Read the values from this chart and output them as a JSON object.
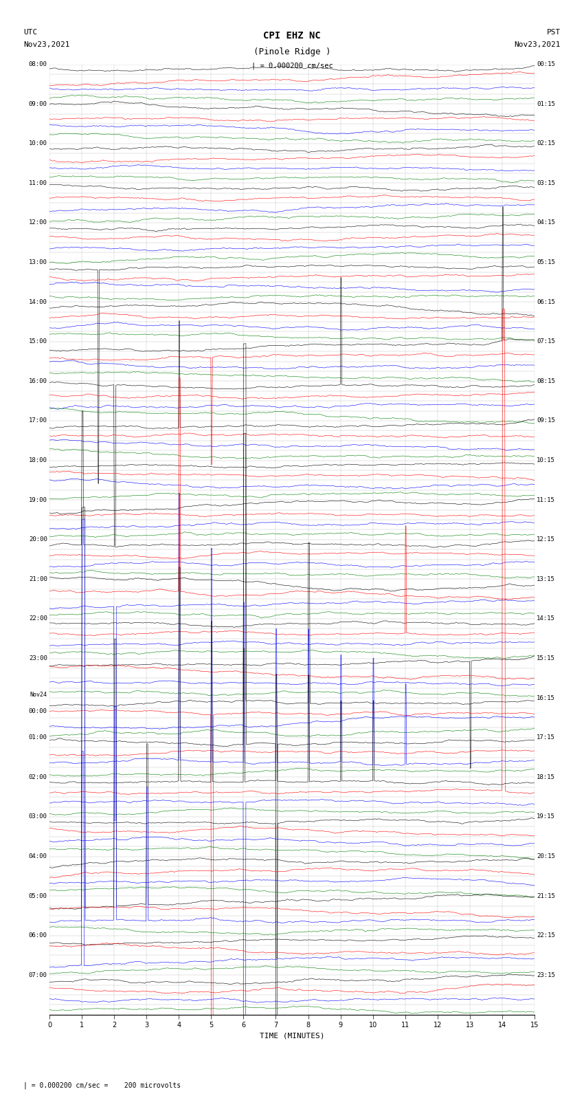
{
  "title_line1": "CPI EHZ NC",
  "title_line2": "(Pinole Ridge )",
  "scale_label": "| = 0.000200 cm/sec",
  "left_label_line1": "UTC",
  "left_label_line2": "Nov23,2021",
  "right_label_line1": "PST",
  "right_label_line2": "Nov23,2021",
  "bottom_label": "TIME (MINUTES)",
  "footer_text": "| = 0.000200 cm/sec =    200 microvolts",
  "left_times": [
    "08:00",
    "",
    "",
    "",
    "09:00",
    "",
    "",
    "",
    "10:00",
    "",
    "",
    "",
    "11:00",
    "",
    "",
    "",
    "12:00",
    "",
    "",
    "",
    "13:00",
    "",
    "",
    "",
    "14:00",
    "",
    "",
    "",
    "15:00",
    "",
    "",
    "",
    "16:00",
    "",
    "",
    "",
    "17:00",
    "",
    "",
    "",
    "18:00",
    "",
    "",
    "",
    "19:00",
    "",
    "",
    "",
    "20:00",
    "",
    "",
    "",
    "21:00",
    "",
    "",
    "",
    "22:00",
    "",
    "",
    "",
    "23:00",
    "",
    "",
    "",
    "Nov24",
    "00:00",
    "",
    "",
    "01:00",
    "",
    "",
    "",
    "02:00",
    "",
    "",
    "",
    "03:00",
    "",
    "",
    "",
    "04:00",
    "",
    "",
    "",
    "05:00",
    "",
    "",
    "",
    "06:00",
    "",
    "",
    "",
    "07:00",
    "",
    "",
    ""
  ],
  "right_times": [
    "00:15",
    "",
    "",
    "",
    "01:15",
    "",
    "",
    "",
    "02:15",
    "",
    "",
    "",
    "03:15",
    "",
    "",
    "",
    "04:15",
    "",
    "",
    "",
    "05:15",
    "",
    "",
    "",
    "06:15",
    "",
    "",
    "",
    "07:15",
    "",
    "",
    "",
    "08:15",
    "",
    "",
    "",
    "09:15",
    "",
    "",
    "",
    "10:15",
    "",
    "",
    "",
    "11:15",
    "",
    "",
    "",
    "12:15",
    "",
    "",
    "",
    "13:15",
    "",
    "",
    "",
    "14:15",
    "",
    "",
    "",
    "15:15",
    "",
    "",
    "",
    "16:15",
    "",
    "",
    "",
    "17:15",
    "",
    "",
    "",
    "18:15",
    "",
    "",
    "",
    "19:15",
    "",
    "",
    "",
    "20:15",
    "",
    "",
    "",
    "21:15",
    "",
    "",
    "",
    "22:15",
    "",
    "",
    "",
    "23:15",
    "",
    "",
    ""
  ],
  "n_rows": 96,
  "colors": [
    "black",
    "red",
    "blue",
    "green"
  ],
  "x_min": 0,
  "x_max": 15,
  "x_ticks": [
    0,
    1,
    2,
    3,
    4,
    5,
    6,
    7,
    8,
    9,
    10,
    11,
    12,
    13,
    14,
    15
  ],
  "background_color": "white",
  "noise_amplitude": 0.08,
  "fig_width": 8.5,
  "fig_height": 16.13
}
